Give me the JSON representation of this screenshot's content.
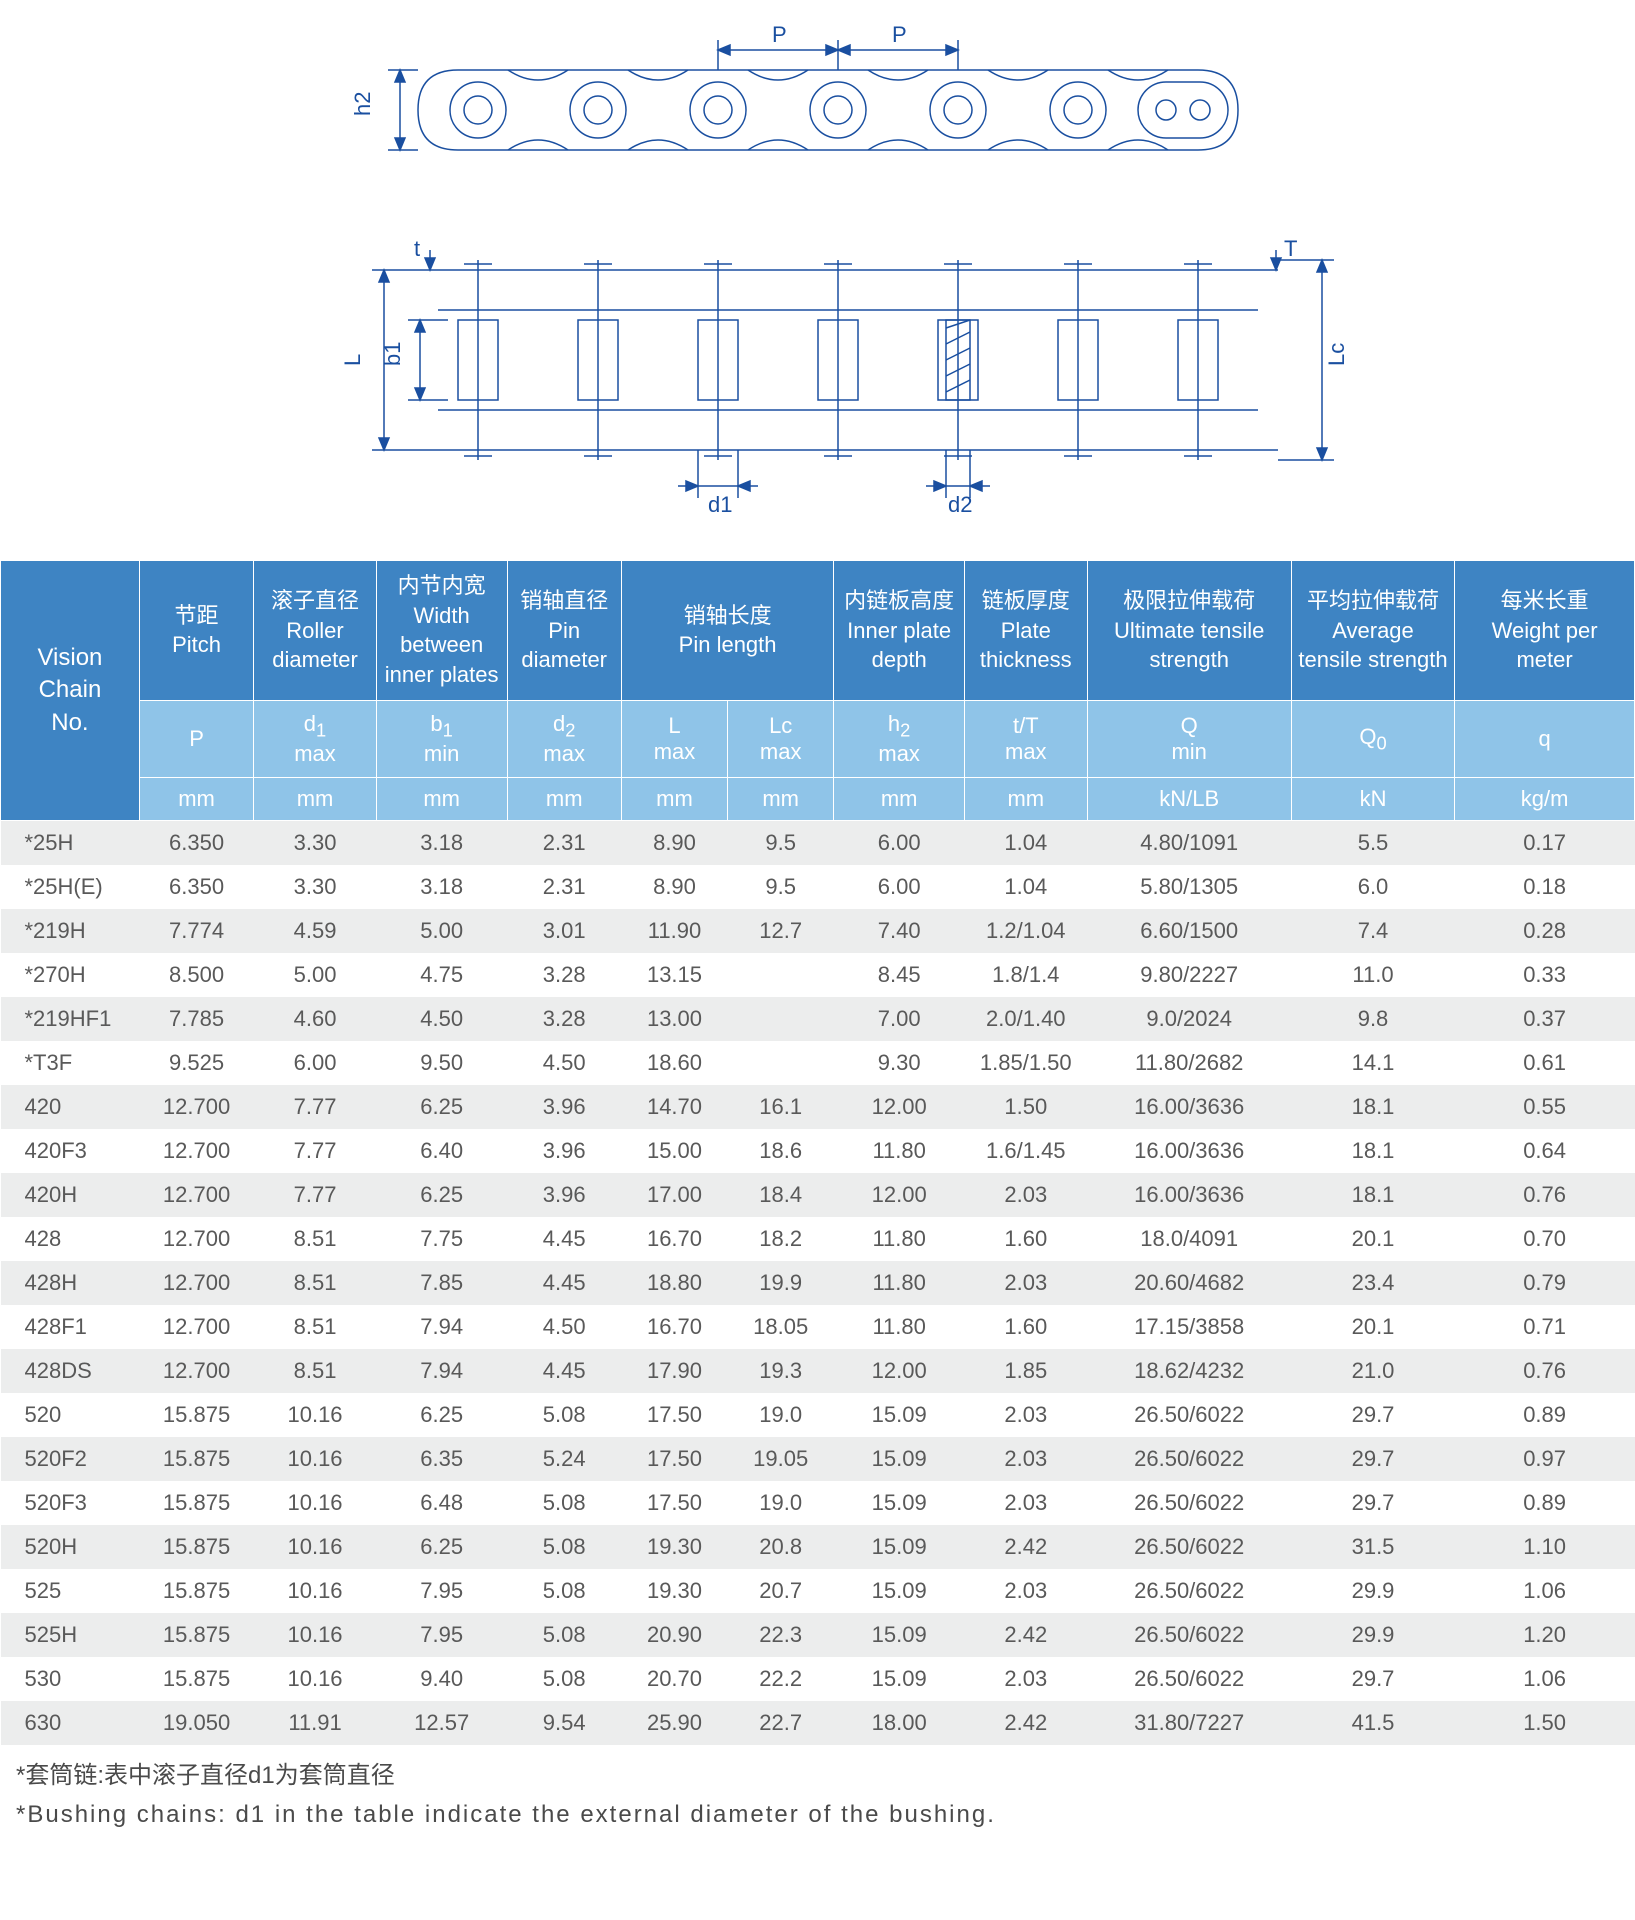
{
  "diagram": {
    "labels": {
      "P": "P",
      "h2": "h2",
      "t": "t",
      "T": "T",
      "L": "L",
      "Lc": "Lc",
      "b1": "b1",
      "d1": "d1",
      "d2": "d2"
    },
    "stroke": "#1a4fa0",
    "hatch": "#1a4fa0",
    "text_color": "#1a4fa0"
  },
  "table": {
    "col_widths_pct": [
      8.5,
      7,
      7.5,
      8,
      7,
      6.5,
      6.5,
      8,
      7.5,
      12.5,
      10,
      11
    ],
    "header_bg_primary": "#3e84c3",
    "header_bg_secondary": "#8fc4e8",
    "header_fg": "#ffffff",
    "row_odd_bg": "#eceded",
    "row_even_bg": "#ffffff",
    "body_fg": "#595959",
    "vision_label_line1": "Vision",
    "vision_label_line2": "Chain",
    "vision_label_line3": "No.",
    "headers_row1": [
      {
        "cn": "节距",
        "en": "Pitch"
      },
      {
        "cn": "滚子直径",
        "en": "Roller diameter"
      },
      {
        "cn": "内节内宽",
        "en": "Width between inner plates"
      },
      {
        "cn": "销轴直径",
        "en": "Pin diameter"
      },
      {
        "cn": "销轴长度",
        "en": "Pin length",
        "colspan": 2
      },
      {
        "cn": "内链板高度",
        "en": "Inner plate depth"
      },
      {
        "cn": "链板厚度",
        "en": "Plate thickness"
      },
      {
        "cn": "极限拉伸载荷",
        "en": "Ultimate tensile strength"
      },
      {
        "cn": "平均拉伸载荷",
        "en": "Average tensile strength"
      },
      {
        "cn": "每米长重",
        "en": "Weight per meter"
      }
    ],
    "headers_row2": [
      {
        "sym": "P",
        "sub": ""
      },
      {
        "sym": "d1",
        "sub": "max"
      },
      {
        "sym": "b1",
        "sub": "min"
      },
      {
        "sym": "d2",
        "sub": "max"
      },
      {
        "sym": "L",
        "sub": "max"
      },
      {
        "sym": "Lc",
        "sub": "max"
      },
      {
        "sym": "h2",
        "sub": "max"
      },
      {
        "sym": "t/T",
        "sub": "max"
      },
      {
        "sym": "Q",
        "sub": "min"
      },
      {
        "sym": "Q0",
        "sub": ""
      },
      {
        "sym": "q",
        "sub": ""
      }
    ],
    "headers_row3": [
      "mm",
      "mm",
      "mm",
      "mm",
      "mm",
      "mm",
      "mm",
      "mm",
      "kN/LB",
      "kN",
      "kg/m"
    ],
    "rows": [
      [
        "*25H",
        "6.350",
        "3.30",
        "3.18",
        "2.31",
        "8.90",
        "9.5",
        "6.00",
        "1.04",
        "4.80/1091",
        "5.5",
        "0.17"
      ],
      [
        "*25H(E)",
        "6.350",
        "3.30",
        "3.18",
        "2.31",
        "8.90",
        "9.5",
        "6.00",
        "1.04",
        "5.80/1305",
        "6.0",
        "0.18"
      ],
      [
        "*219H",
        "7.774",
        "4.59",
        "5.00",
        "3.01",
        "11.90",
        "12.7",
        "7.40",
        "1.2/1.04",
        "6.60/1500",
        "7.4",
        "0.28"
      ],
      [
        "*270H",
        "8.500",
        "5.00",
        "4.75",
        "3.28",
        "13.15",
        "",
        "8.45",
        "1.8/1.4",
        "9.80/2227",
        "11.0",
        "0.33"
      ],
      [
        "*219HF1",
        "7.785",
        "4.60",
        "4.50",
        "3.28",
        "13.00",
        "",
        "7.00",
        "2.0/1.40",
        "9.0/2024",
        "9.8",
        "0.37"
      ],
      [
        "*T3F",
        "9.525",
        "6.00",
        "9.50",
        "4.50",
        "18.60",
        "",
        "9.30",
        "1.85/1.50",
        "11.80/2682",
        "14.1",
        "0.61"
      ],
      [
        "420",
        "12.700",
        "7.77",
        "6.25",
        "3.96",
        "14.70",
        "16.1",
        "12.00",
        "1.50",
        "16.00/3636",
        "18.1",
        "0.55"
      ],
      [
        "420F3",
        "12.700",
        "7.77",
        "6.40",
        "3.96",
        "15.00",
        "18.6",
        "11.80",
        "1.6/1.45",
        "16.00/3636",
        "18.1",
        "0.64"
      ],
      [
        "420H",
        "12.700",
        "7.77",
        "6.25",
        "3.96",
        "17.00",
        "18.4",
        "12.00",
        "2.03",
        "16.00/3636",
        "18.1",
        "0.76"
      ],
      [
        "428",
        "12.700",
        "8.51",
        "7.75",
        "4.45",
        "16.70",
        "18.2",
        "11.80",
        "1.60",
        "18.0/4091",
        "20.1",
        "0.70"
      ],
      [
        "428H",
        "12.700",
        "8.51",
        "7.85",
        "4.45",
        "18.80",
        "19.9",
        "11.80",
        "2.03",
        "20.60/4682",
        "23.4",
        "0.79"
      ],
      [
        "428F1",
        "12.700",
        "8.51",
        "7.94",
        "4.50",
        "16.70",
        "18.05",
        "11.80",
        "1.60",
        "17.15/3858",
        "20.1",
        "0.71"
      ],
      [
        "428DS",
        "12.700",
        "8.51",
        "7.94",
        "4.45",
        "17.90",
        "19.3",
        "12.00",
        "1.85",
        "18.62/4232",
        "21.0",
        "0.76"
      ],
      [
        "520",
        "15.875",
        "10.16",
        "6.25",
        "5.08",
        "17.50",
        "19.0",
        "15.09",
        "2.03",
        "26.50/6022",
        "29.7",
        "0.89"
      ],
      [
        "520F2",
        "15.875",
        "10.16",
        "6.35",
        "5.24",
        "17.50",
        "19.05",
        "15.09",
        "2.03",
        "26.50/6022",
        "29.7",
        "0.97"
      ],
      [
        "520F3",
        "15.875",
        "10.16",
        "6.48",
        "5.08",
        "17.50",
        "19.0",
        "15.09",
        "2.03",
        "26.50/6022",
        "29.7",
        "0.89"
      ],
      [
        "520H",
        "15.875",
        "10.16",
        "6.25",
        "5.08",
        "19.30",
        "20.8",
        "15.09",
        "2.42",
        "26.50/6022",
        "31.5",
        "1.10"
      ],
      [
        "525",
        "15.875",
        "10.16",
        "7.95",
        "5.08",
        "19.30",
        "20.7",
        "15.09",
        "2.03",
        "26.50/6022",
        "29.9",
        "1.06"
      ],
      [
        "525H",
        "15.875",
        "10.16",
        "7.95",
        "5.08",
        "20.90",
        "22.3",
        "15.09",
        "2.42",
        "26.50/6022",
        "29.9",
        "1.20"
      ],
      [
        "530",
        "15.875",
        "10.16",
        "9.40",
        "5.08",
        "20.70",
        "22.2",
        "15.09",
        "2.03",
        "26.50/6022",
        "29.7",
        "1.06"
      ],
      [
        "630",
        "19.050",
        "11.91",
        "12.57",
        "9.54",
        "25.90",
        "22.7",
        "18.00",
        "2.42",
        "31.80/7227",
        "41.5",
        "1.50"
      ]
    ]
  },
  "footnotes": {
    "cn": "*套筒链:表中滚子直径d1为套筒直径",
    "en": "*Bushing chains: d1 in the table indicate the external diameter of the bushing."
  }
}
